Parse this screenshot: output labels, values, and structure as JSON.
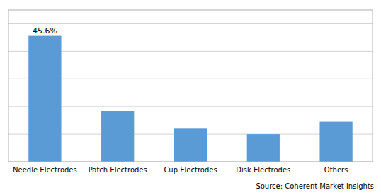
{
  "chart_data": {
    "type": "bar",
    "categories": [
      "Needle Electrodes",
      "Patch Electrodes",
      "Cup Electrodes",
      "Disk Electrodes",
      "Others"
    ],
    "values": [
      45.6,
      18.5,
      12.0,
      10.0,
      14.5
    ],
    "value_labels": [
      "45.6%",
      null,
      null,
      null,
      null
    ],
    "data_labels": true,
    "color": "#5B9BD5",
    "ylim": [
      0,
      55
    ],
    "yticks": [
      0,
      10,
      20,
      30,
      40,
      50
    ],
    "grid": true,
    "tick_labels": "x",
    "source": "Source: Coherent Market Insights"
  }
}
